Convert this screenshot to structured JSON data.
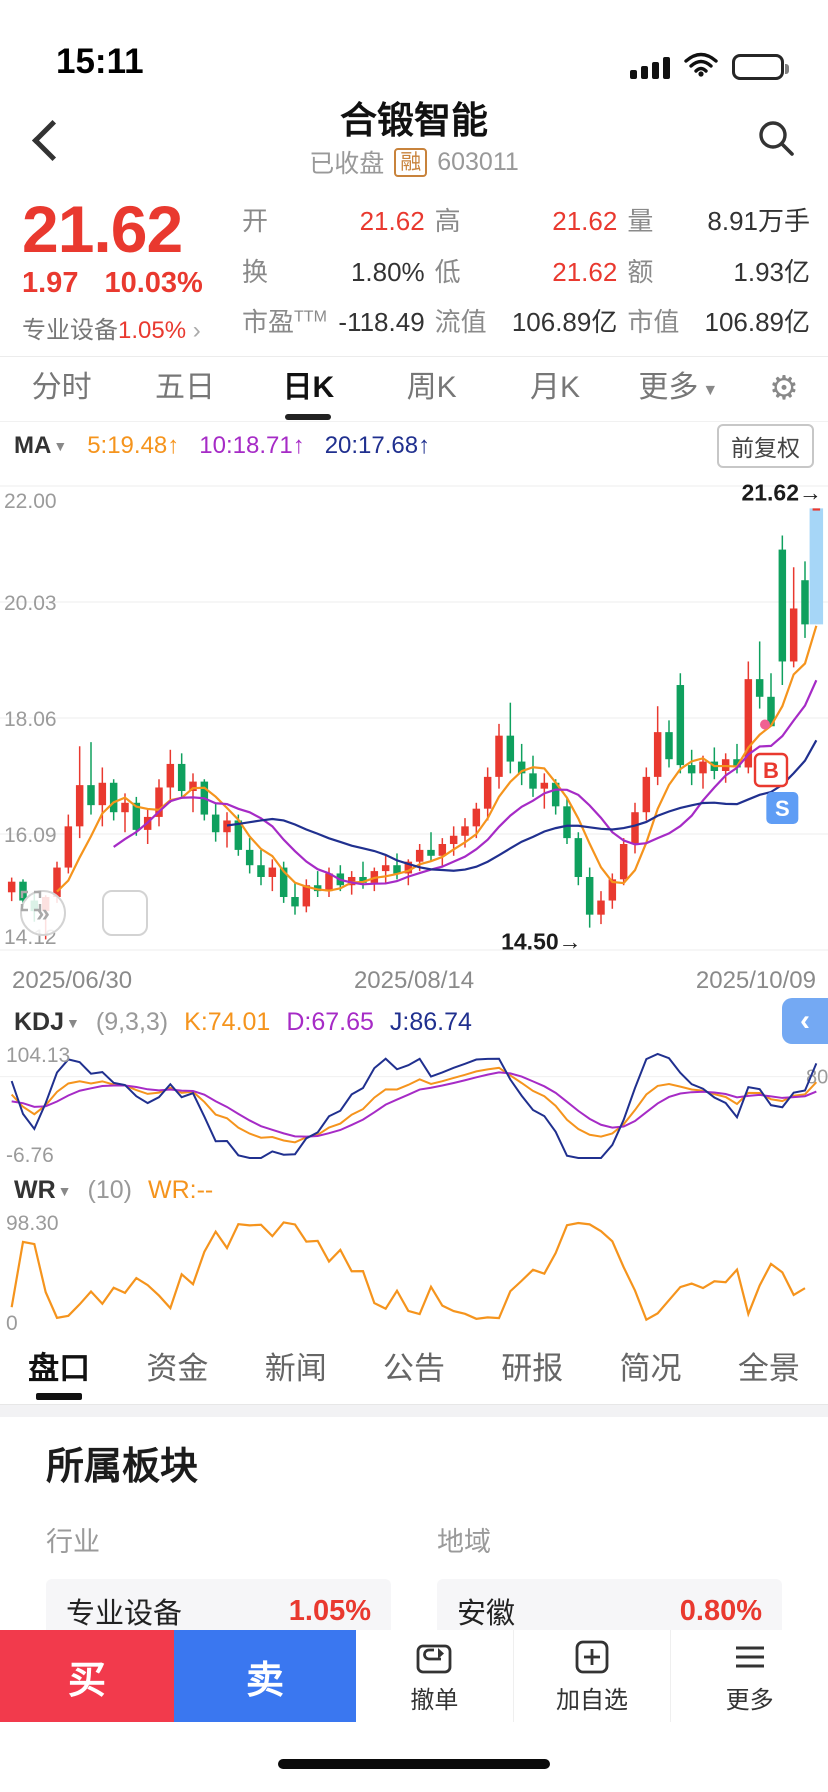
{
  "colors": {
    "red": "#e9392f",
    "green": "#0fa05e",
    "ma5": "#f5941d",
    "ma10": "#a62bc6",
    "ma20": "#20308f",
    "buy": "#f23a4c",
    "sell": "#3a77f0",
    "highlight": "#a6d6f7",
    "s_badge": "#5f9df5",
    "dot": "#f06292"
  },
  "status_bar": {
    "time": "15:11"
  },
  "header": {
    "title": "合锻智能",
    "status": "已收盘",
    "margin_badge": "融",
    "code": "603011"
  },
  "quote": {
    "price": "21.62",
    "change": "1.97",
    "change_pct": "10.03%",
    "sector_link": {
      "name": "专业设备",
      "pct": "1.05%",
      "chevron": "›"
    },
    "col1": [
      {
        "label": "开",
        "value": "21.62"
      },
      {
        "label": "换",
        "value": "1.80%"
      },
      {
        "label": "市盈",
        "sup": "TTM",
        "value": "-118.49"
      }
    ],
    "col2": [
      {
        "label": "高",
        "value": "21.62"
      },
      {
        "label": "低",
        "value": "21.62"
      },
      {
        "label": "流值",
        "value": "106.89亿"
      }
    ],
    "col3": [
      {
        "label": "量",
        "value": "8.91万手"
      },
      {
        "label": "额",
        "value": "1.93亿"
      },
      {
        "label": "市值",
        "value": "106.89亿"
      }
    ]
  },
  "period_tabs": {
    "items": [
      "分时",
      "五日",
      "日K",
      "周K",
      "月K"
    ],
    "more": "更多",
    "active": "日K"
  },
  "ma_bar": {
    "name": "MA",
    "ma5": "5:19.48",
    "ma10": "10:18.71",
    "ma20": "20:17.68",
    "arrow": "↑",
    "adjust": "前复权"
  },
  "main_chart": {
    "y_labels": [
      "22.00",
      "20.03",
      "18.06",
      "16.09",
      "14.12"
    ],
    "x_labels": [
      "2025/06/30",
      "2025/08/14",
      "2025/10/09"
    ],
    "last_price_tag": "21.62→",
    "low_tag": "14.50→",
    "marker_b": "B",
    "marker_s": "S",
    "expand_icon": "»"
  },
  "kdj": {
    "name": "KDJ",
    "params": "(9,3,3)",
    "k_label": "K:74.01",
    "d_label": "D:67.65",
    "j_label": "J:86.74",
    "max_label": "104.13",
    "min_label": "-6.76",
    "level_label": "80",
    "collapse_icon": "‹"
  },
  "wr": {
    "name": "WR",
    "params": "(10)",
    "value_label": "WR:--",
    "max_label": "98.30",
    "min_label": "0"
  },
  "bottom_tabs": {
    "items": [
      "盘口",
      "资金",
      "新闻",
      "公告",
      "研报",
      "简况",
      "全景"
    ],
    "active": "盘口"
  },
  "board": {
    "title": "所属板块",
    "industry_label": "行业",
    "region_label": "地域",
    "industry": {
      "name": "专业设备",
      "pct": "1.05%"
    },
    "region": {
      "name": "安徽",
      "pct": "0.80%"
    }
  },
  "action_bar": {
    "buy": "买",
    "sell": "卖",
    "cancel": "撤单",
    "watchlist": "加自选",
    "more": "更多"
  },
  "chart_data": {
    "type": "candlestick",
    "title": "合锻智能 603011 日K 前复权",
    "y_min": 14.12,
    "y_max": 22.0,
    "prev_close": 19.65,
    "last_price": 21.62,
    "low_value": 14.5,
    "low_day": 51,
    "marker_b_day": 67,
    "marker_s_day": 68,
    "kdj_range": [
      -6.76,
      104.13
    ],
    "wr_range": [
      0,
      98.3
    ],
    "level_80": 80,
    "candles": [
      [
        15.1,
        15.35,
        14.95,
        15.28
      ],
      [
        15.28,
        15.32,
        14.85,
        14.96
      ],
      [
        14.96,
        15.1,
        14.6,
        14.78
      ],
      [
        14.78,
        15.05,
        14.3,
        15.02
      ],
      [
        15.02,
        15.62,
        14.92,
        15.52
      ],
      [
        15.52,
        16.42,
        15.42,
        16.22
      ],
      [
        16.22,
        17.58,
        16.02,
        16.92
      ],
      [
        16.92,
        17.65,
        16.42,
        16.58
      ],
      [
        16.58,
        17.22,
        16.22,
        16.96
      ],
      [
        16.96,
        17.02,
        16.32,
        16.46
      ],
      [
        16.46,
        16.78,
        16.12,
        16.62
      ],
      [
        16.62,
        16.72,
        16.06,
        16.16
      ],
      [
        16.16,
        16.52,
        15.92,
        16.38
      ],
      [
        16.38,
        17.02,
        16.22,
        16.88
      ],
      [
        16.88,
        17.52,
        16.62,
        17.28
      ],
      [
        17.28,
        17.46,
        16.72,
        16.82
      ],
      [
        16.82,
        17.12,
        16.46,
        16.98
      ],
      [
        16.98,
        17.02,
        16.32,
        16.42
      ],
      [
        16.42,
        16.62,
        15.96,
        16.12
      ],
      [
        16.12,
        16.46,
        15.86,
        16.32
      ],
      [
        16.32,
        16.42,
        15.72,
        15.82
      ],
      [
        15.82,
        16.02,
        15.42,
        15.56
      ],
      [
        15.56,
        15.82,
        15.22,
        15.36
      ],
      [
        15.36,
        15.66,
        15.12,
        15.52
      ],
      [
        15.52,
        15.62,
        14.92,
        15.02
      ],
      [
        15.02,
        15.26,
        14.72,
        14.86
      ],
      [
        14.86,
        15.32,
        14.76,
        15.22
      ],
      [
        15.22,
        15.46,
        15.02,
        15.12
      ],
      [
        15.12,
        15.52,
        15.02,
        15.42
      ],
      [
        15.42,
        15.56,
        15.12,
        15.22
      ],
      [
        15.22,
        15.46,
        15.06,
        15.36
      ],
      [
        15.36,
        15.62,
        15.16,
        15.26
      ],
      [
        15.26,
        15.52,
        15.12,
        15.46
      ],
      [
        15.46,
        15.72,
        15.26,
        15.56
      ],
      [
        15.56,
        15.76,
        15.32,
        15.42
      ],
      [
        15.42,
        15.66,
        15.22,
        15.62
      ],
      [
        15.62,
        15.92,
        15.46,
        15.82
      ],
      [
        15.82,
        16.12,
        15.62,
        15.72
      ],
      [
        15.72,
        16.02,
        15.52,
        15.92
      ],
      [
        15.92,
        16.22,
        15.72,
        16.06
      ],
      [
        16.06,
        16.36,
        15.86,
        16.22
      ],
      [
        16.22,
        16.62,
        16.02,
        16.52
      ],
      [
        16.52,
        17.22,
        16.32,
        17.06
      ],
      [
        17.06,
        17.96,
        16.86,
        17.76
      ],
      [
        17.76,
        18.32,
        17.12,
        17.32
      ],
      [
        17.32,
        17.62,
        16.92,
        17.12
      ],
      [
        17.12,
        17.42,
        16.72,
        16.86
      ],
      [
        16.86,
        17.12,
        16.52,
        16.96
      ],
      [
        16.96,
        17.02,
        16.42,
        16.56
      ],
      [
        16.56,
        16.72,
        15.92,
        16.02
      ],
      [
        16.02,
        16.12,
        15.22,
        15.36
      ],
      [
        15.36,
        15.52,
        14.5,
        14.72
      ],
      [
        14.72,
        15.12,
        14.56,
        14.96
      ],
      [
        14.96,
        15.42,
        14.82,
        15.32
      ],
      [
        15.32,
        16.02,
        15.22,
        15.92
      ],
      [
        15.92,
        16.62,
        15.76,
        16.46
      ],
      [
        16.46,
        17.22,
        16.32,
        17.06
      ],
      [
        17.06,
        18.26,
        16.92,
        17.82
      ],
      [
        17.82,
        18.02,
        17.22,
        17.36
      ],
      [
        18.62,
        18.82,
        17.12,
        17.26
      ],
      [
        17.26,
        17.52,
        16.92,
        17.12
      ],
      [
        17.12,
        17.42,
        16.86,
        17.32
      ],
      [
        17.32,
        17.56,
        17.02,
        17.16
      ],
      [
        17.16,
        17.46,
        16.96,
        17.36
      ],
      [
        17.36,
        17.62,
        17.12,
        17.22
      ],
      [
        17.22,
        19.02,
        17.12,
        18.72
      ],
      [
        18.72,
        19.36,
        18.22,
        18.42
      ],
      [
        18.42,
        18.82,
        17.96,
        17.92
      ],
      [
        20.92,
        21.16,
        18.62,
        19.02
      ],
      [
        19.02,
        20.62,
        18.92,
        19.92
      ],
      [
        20.4,
        20.72,
        19.42,
        19.65
      ],
      [
        21.62,
        21.62,
        21.62,
        21.62
      ]
    ]
  }
}
